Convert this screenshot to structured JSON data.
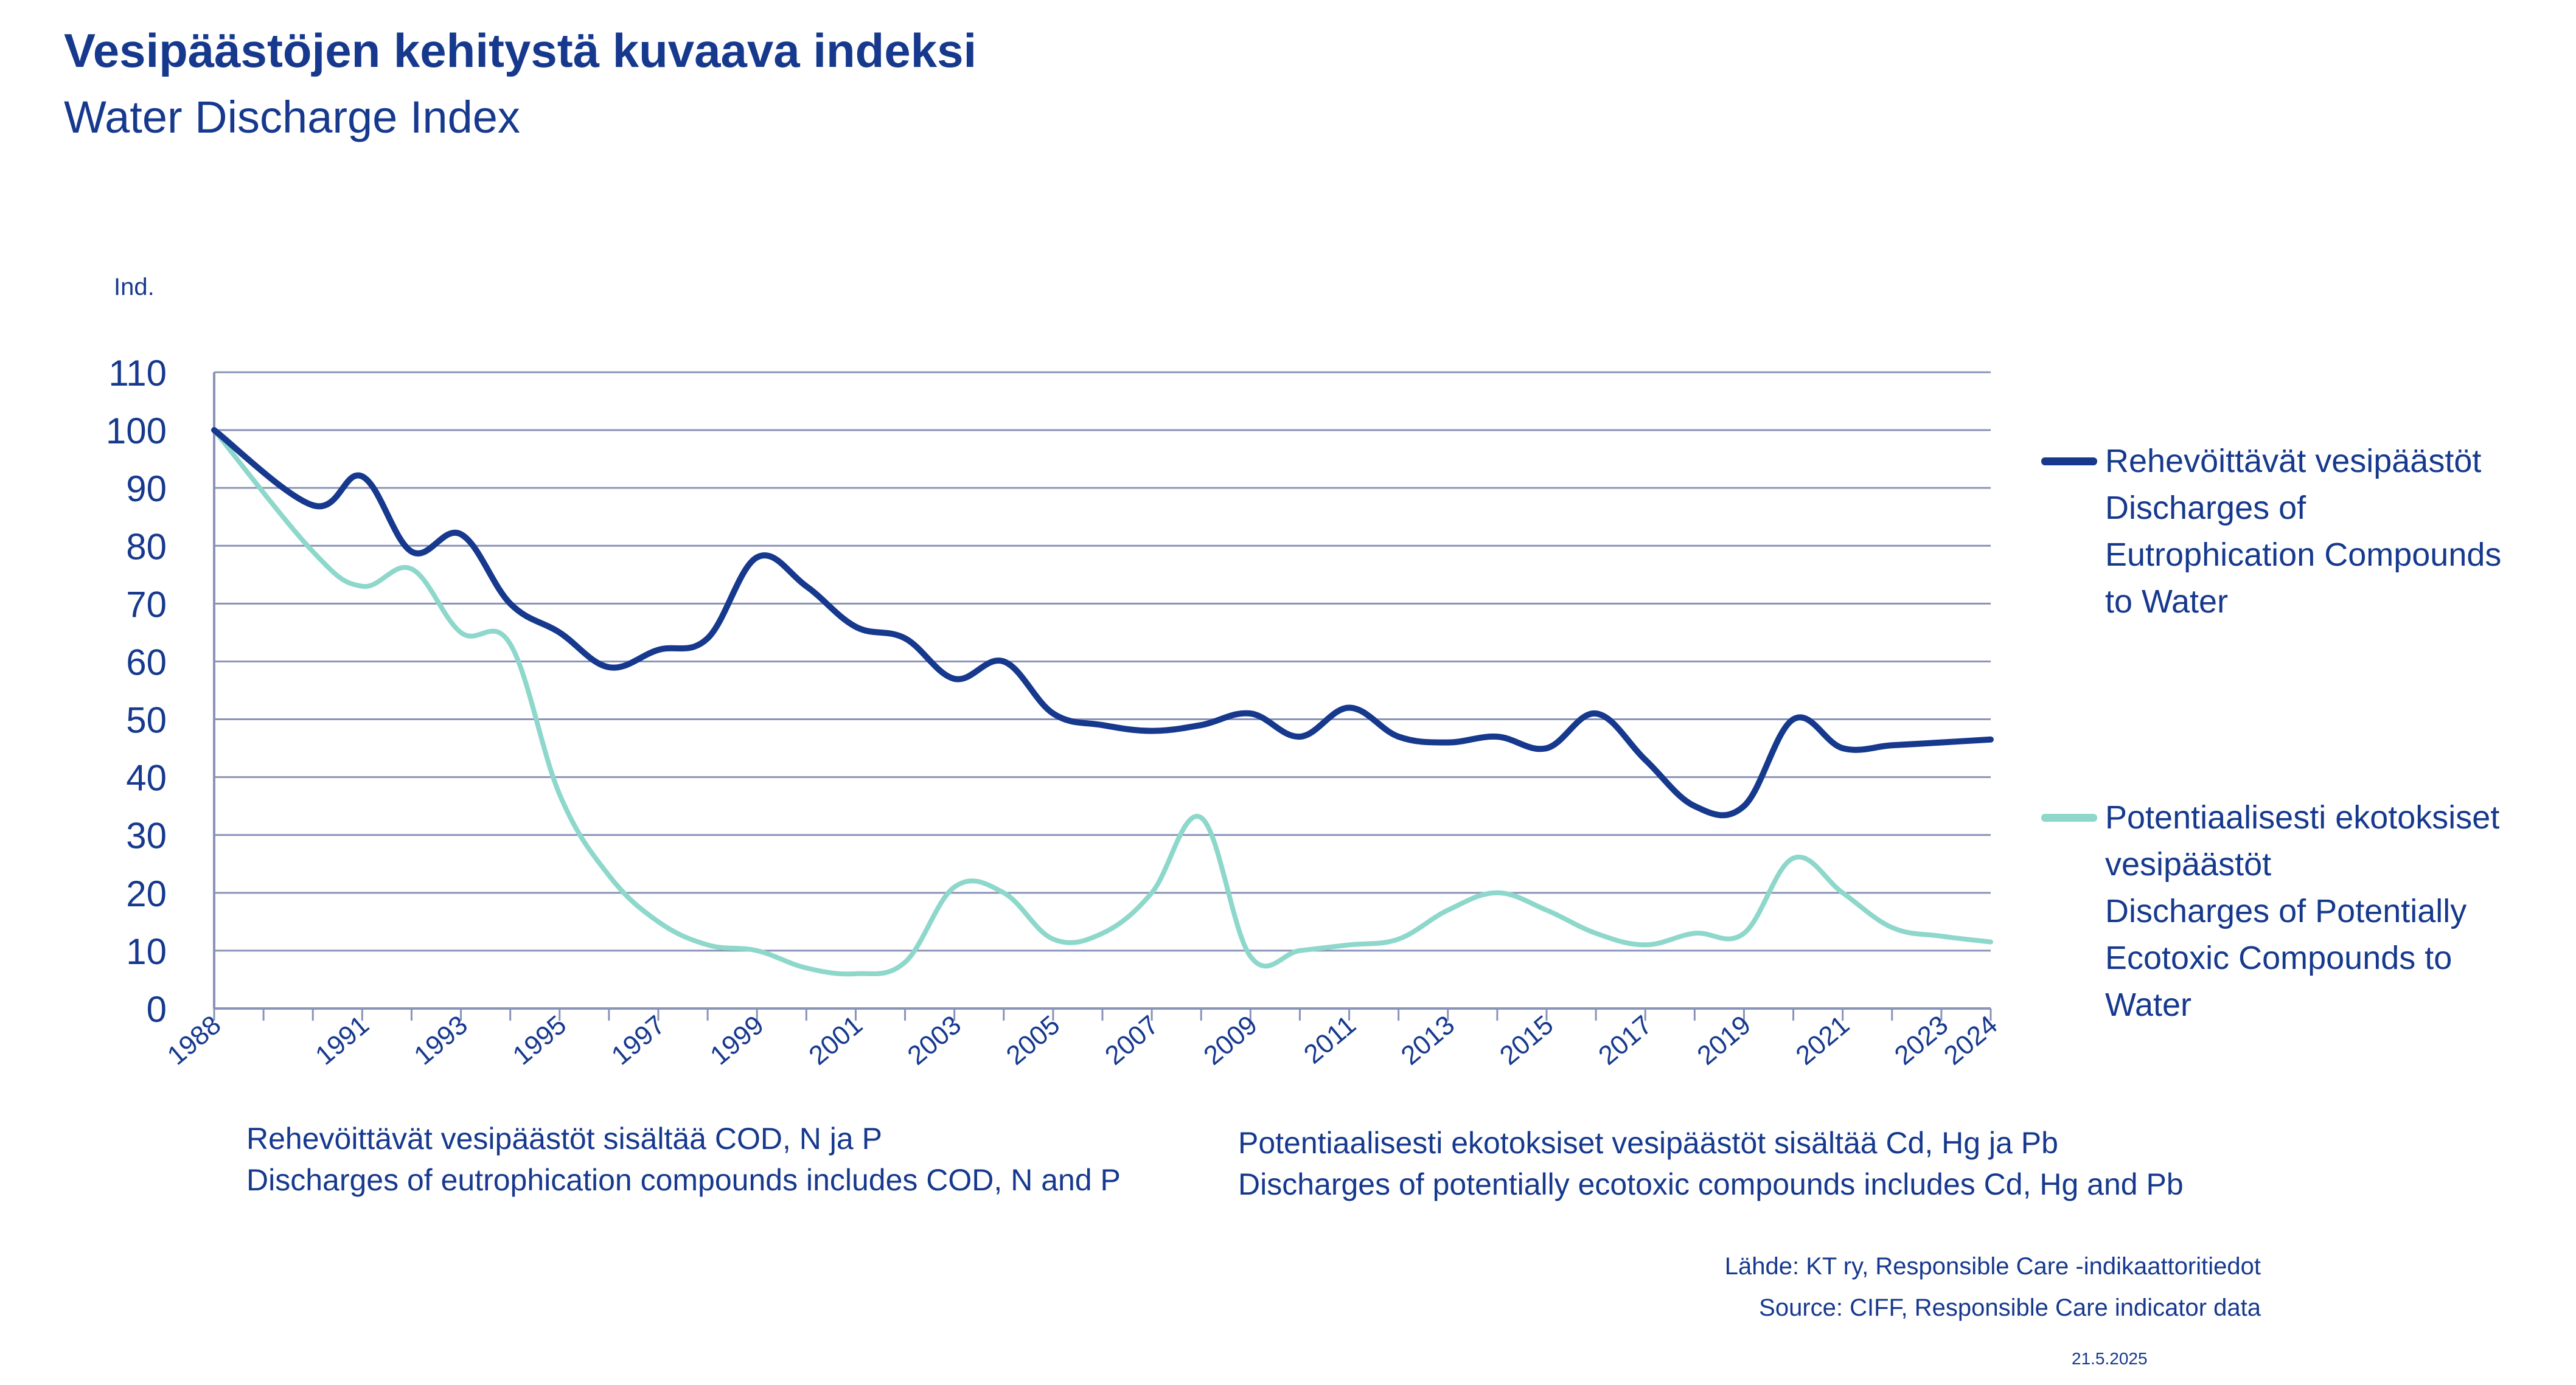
{
  "chart_data": {
    "type": "line",
    "title": "Vesipäästöjen kehitystä kuvaava indeksi",
    "subtitle": "Water Discharge Index",
    "ylabel": "Ind.",
    "xlabel": "",
    "ylim": [
      0,
      110
    ],
    "yticks": [
      "0",
      "10",
      "20",
      "30",
      "40",
      "50",
      "60",
      "70",
      "80",
      "90",
      "100",
      "110"
    ],
    "grid": true,
    "legend_position": "right",
    "x": [
      "1988",
      "1990",
      "1991",
      "1992",
      "1993",
      "1994",
      "1995",
      "1996",
      "1997",
      "1998",
      "1999",
      "2000",
      "2001",
      "2002",
      "2003",
      "2004",
      "2005",
      "2006",
      "2007",
      "2008",
      "2009",
      "2010",
      "2011",
      "2012",
      "2013",
      "2014",
      "2015",
      "2016",
      "2017",
      "2018",
      "2019",
      "2020",
      "2021",
      "2022",
      "2023",
      "2024"
    ],
    "xtick_labels": [
      "1988",
      "1991",
      "1993",
      "1995",
      "1997",
      "1999",
      "2001",
      "2003",
      "2005",
      "2007",
      "2009",
      "2011",
      "2013",
      "2015",
      "2017",
      "2019",
      "2021",
      "2023",
      "2024"
    ],
    "series": [
      {
        "name": "Rehevöittävät vesipäästöt Discharges of Eutrophication Compounds to Water",
        "legend_lines": [
          "Rehevöittävät vesipäästöt",
          "Discharges of",
          "Eutrophication Compounds",
          "to Water"
        ],
        "color": "#16398e",
        "values": [
          100,
          87,
          92,
          79,
          82,
          70,
          65,
          59,
          62,
          64,
          78,
          73,
          66,
          64,
          57,
          60,
          51,
          49,
          48,
          49,
          51,
          47,
          52,
          47,
          46,
          47,
          45,
          51,
          43,
          35,
          35,
          50,
          45,
          45.5,
          46,
          46.5
        ]
      },
      {
        "name": "Potentiaalisesti ekotoksiset vesipäästöt Discharges of Potentially Ecotoxic Compounds to Water",
        "legend_lines": [
          "Potentiaalisesti ekotoksiset",
          "vesipäästöt",
          "Discharges of Potentially",
          "Ecotoxic Compounds to",
          "Water"
        ],
        "color": "#8dd7cb",
        "values": [
          100,
          79,
          73,
          76,
          65,
          63,
          37,
          23,
          15,
          11,
          10,
          7,
          6,
          8,
          21,
          20,
          12,
          13,
          20,
          33,
          9,
          10,
          11,
          12,
          17,
          20,
          17,
          13,
          11,
          13,
          13,
          26,
          20,
          14,
          12.5,
          11.5
        ]
      }
    ]
  },
  "notes": {
    "left": [
      "Rehevöittävät vesipäästöt sisältää COD, N ja P",
      "Discharges of eutrophication compounds includes COD, N and P"
    ],
    "right": [
      "Potentiaalisesti ekotoksiset vesipäästöt sisältää Cd, Hg ja Pb",
      "Discharges of potentially ecotoxic compounds includes Cd, Hg and Pb"
    ]
  },
  "source": [
    "Lähde: KT ry, Responsible Care -indikaattoritiedot",
    "Source: CIFF, Responsible Care indicator data"
  ],
  "date": "21.5.2025"
}
